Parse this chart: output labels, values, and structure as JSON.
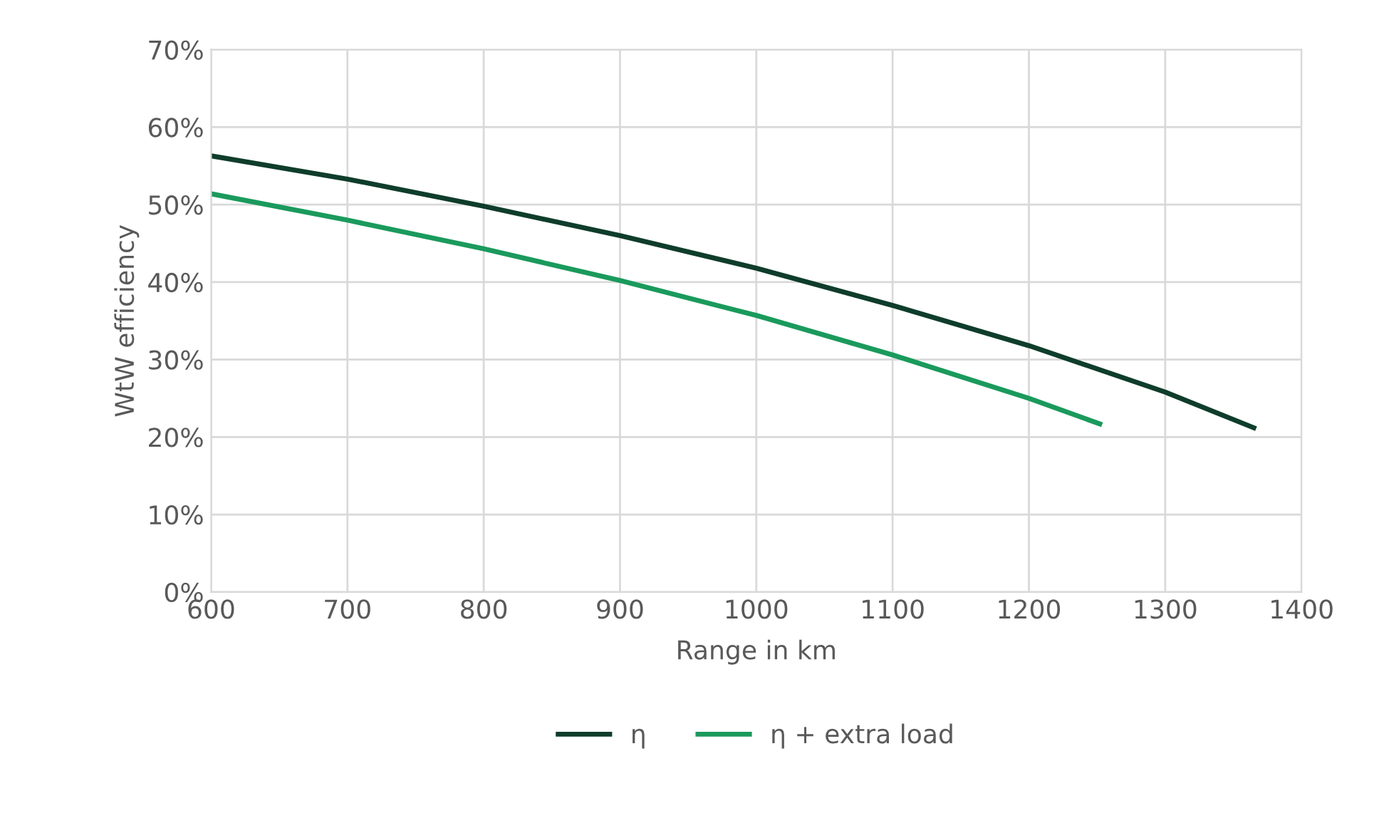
{
  "chart_data": {
    "type": "line",
    "xlabel": "Range in km",
    "ylabel": "WtW efficiency",
    "xlim": [
      600,
      1400
    ],
    "xticks": [
      600,
      700,
      800,
      900,
      1000,
      1100,
      1200,
      1300,
      1400
    ],
    "ylim": [
      0,
      70
    ],
    "yticks": [
      {
        "value": 0,
        "label": "0%"
      },
      {
        "value": 10,
        "label": "10%"
      },
      {
        "value": 20,
        "label": "20%"
      },
      {
        "value": 30,
        "label": "30%"
      },
      {
        "value": 40,
        "label": "40%"
      },
      {
        "value": 50,
        "label": "50%"
      },
      {
        "value": 60,
        "label": "60%"
      },
      {
        "value": 70,
        "label": "70%"
      }
    ],
    "grid": true,
    "legend": "bottom",
    "marker": "none",
    "line_style": "solid",
    "series": [
      {
        "name": "η",
        "color": "#0f3d2b",
        "x": [
          600,
          700,
          800,
          900,
          1000,
          1100,
          1200,
          1300,
          1365
        ],
        "values": [
          56.3,
          53.3,
          49.8,
          46.0,
          41.8,
          37.0,
          31.8,
          25.8,
          21.2
        ]
      },
      {
        "name": "η + extra load",
        "color": "#1a9a5c",
        "x": [
          600,
          700,
          800,
          900,
          1000,
          1100,
          1200,
          1252
        ],
        "values": [
          51.4,
          48.0,
          44.3,
          40.2,
          35.7,
          30.6,
          25.0,
          21.7
        ]
      }
    ]
  }
}
